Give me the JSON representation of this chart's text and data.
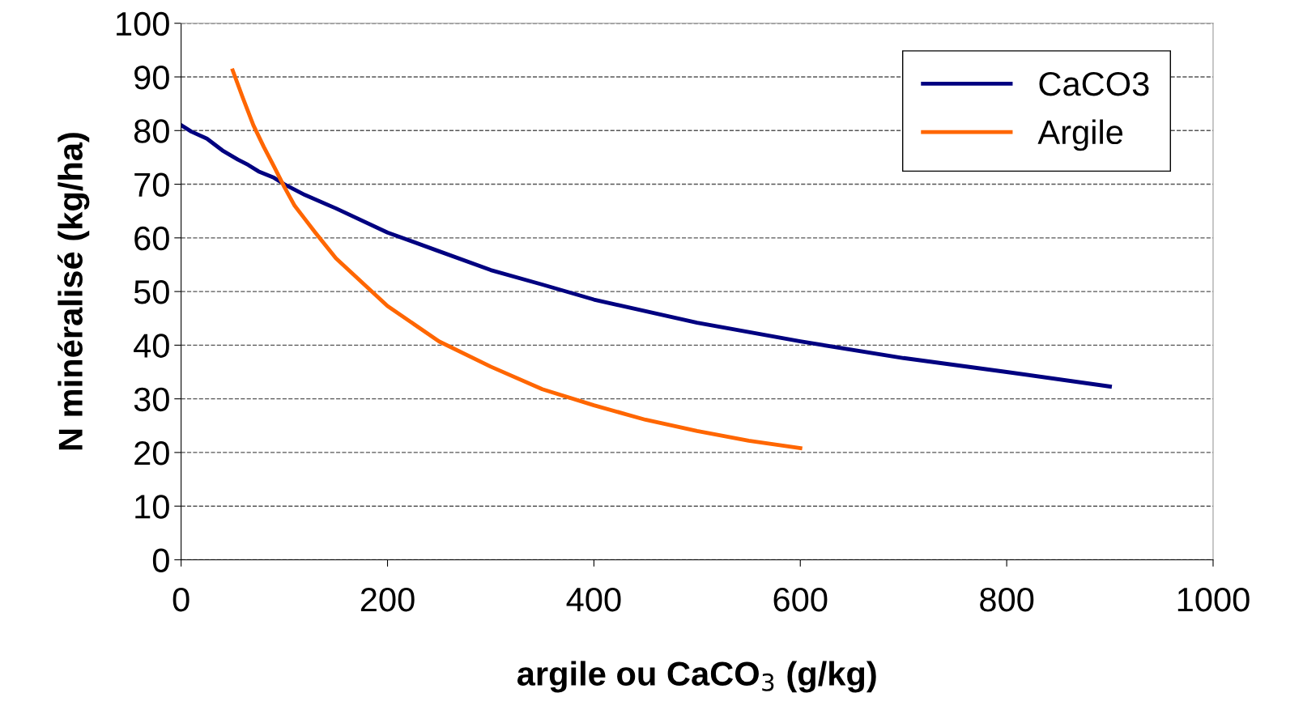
{
  "chart_data": {
    "type": "line",
    "xlabel": "argile ou CaCO$_{3}$ (g/kg)",
    "ylabel": "N minéralisé (kg/ha)",
    "xlim": [
      0,
      1000
    ],
    "xticks": [
      0,
      200,
      400,
      600,
      800,
      1000
    ],
    "ylim": [
      0,
      100
    ],
    "yticks": [
      0,
      10,
      20,
      30,
      40,
      50,
      60,
      70,
      80,
      90,
      100
    ],
    "grid": "y",
    "legend": "top right",
    "line_style": "solid",
    "marker": "none",
    "series": [
      {
        "name": "CaCO3",
        "color": "#000080",
        "x": [
          0,
          10,
          25,
          40,
          55,
          65,
          75,
          90,
          100,
          120,
          150,
          200,
          250,
          300,
          350,
          400,
          500,
          600,
          700,
          800,
          900
        ],
        "values": [
          81,
          79.8,
          78.5,
          76.3,
          74.6,
          73.6,
          72.4,
          71.2,
          70,
          68,
          65.5,
          61,
          57.5,
          54,
          51.3,
          48.5,
          44.2,
          40.7,
          37.6,
          35,
          32.3
        ]
      },
      {
        "name": "Argile",
        "color": "#ff6600",
        "x": [
          50,
          60,
          70,
          80,
          90,
          100,
          110,
          120,
          130,
          150,
          200,
          250,
          300,
          350,
          400,
          450,
          500,
          550,
          600
        ],
        "values": [
          91.2,
          86,
          81,
          77,
          73.3,
          69.5,
          66,
          63.5,
          61,
          56.2,
          47.3,
          40.7,
          36,
          31.8,
          28.8,
          26.1,
          24,
          22.2,
          20.8
        ]
      }
    ]
  }
}
